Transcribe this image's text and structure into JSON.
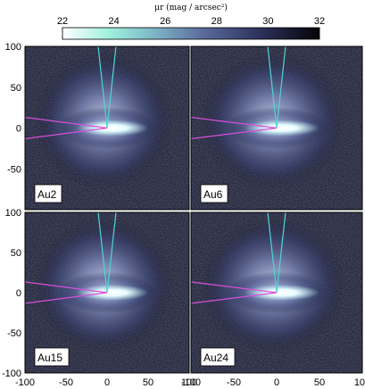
{
  "colorbar": {
    "title": "μr (mag / arcsec²)",
    "ticks": [
      "22",
      "24",
      "26",
      "28",
      "30",
      "32"
    ],
    "range": [
      22,
      32
    ],
    "colors": [
      "#ffffff",
      "#7fe0d0",
      "#6a8ab0",
      "#3a4070",
      "#0a0a10"
    ]
  },
  "axes": {
    "y_ticks": [
      "100",
      "50",
      "0",
      "-50",
      "-100"
    ],
    "x_ticks": [
      "-100",
      "-50",
      "0",
      "50",
      "100"
    ],
    "range": [
      -100,
      100
    ]
  },
  "panels": [
    {
      "label": "Au2"
    },
    {
      "label": "Au6"
    },
    {
      "label": "Au15"
    },
    {
      "label": "Au24"
    }
  ],
  "line_colors": {
    "cone_vertical": "#4fd6d6",
    "cone_horizontal": "#d84fd8"
  }
}
